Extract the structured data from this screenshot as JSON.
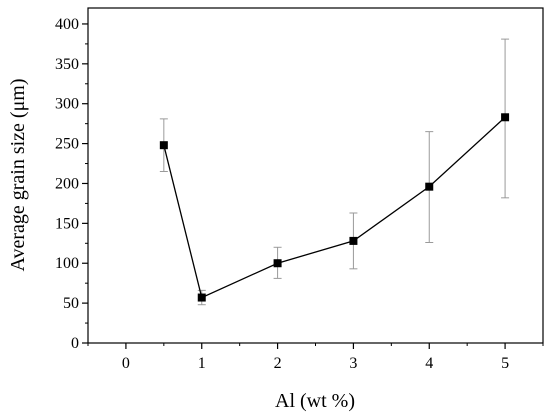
{
  "chart_data": {
    "type": "line",
    "title": "",
    "xlabel": "Al (wt %)",
    "ylabel": "Average grain size (μm)",
    "xlim": [
      -0.5,
      5.5
    ],
    "ylim": [
      0,
      420
    ],
    "xticks": [
      0,
      1,
      2,
      3,
      4,
      5
    ],
    "yticks": [
      0,
      50,
      100,
      150,
      200,
      250,
      300,
      350,
      400
    ],
    "grid": false,
    "legend": "none",
    "series": [
      {
        "x": [
          0.5,
          1,
          2,
          3,
          4,
          5
        ],
        "y": [
          248,
          57,
          100,
          128,
          196,
          283
        ],
        "y_err_low": [
          215,
          48,
          81,
          93,
          126,
          182
        ],
        "y_err_high": [
          281,
          66,
          120,
          163,
          265,
          381
        ],
        "marker": "square",
        "color": "#000000",
        "error_bar_color": "#9a9a9a"
      }
    ]
  }
}
